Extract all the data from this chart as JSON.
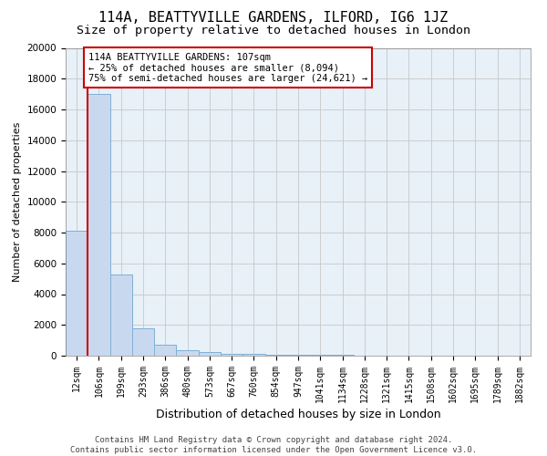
{
  "title": "114A, BEATTYVILLE GARDENS, ILFORD, IG6 1JZ",
  "subtitle": "Size of property relative to detached houses in London",
  "xlabel": "Distribution of detached houses by size in London",
  "ylabel": "Number of detached properties",
  "footer_line1": "Contains HM Land Registry data © Crown copyright and database right 2024.",
  "footer_line2": "Contains public sector information licensed under the Open Government Licence v3.0.",
  "bin_labels": [
    "12sqm",
    "106sqm",
    "199sqm",
    "293sqm",
    "386sqm",
    "480sqm",
    "573sqm",
    "667sqm",
    "760sqm",
    "854sqm",
    "947sqm",
    "1041sqm",
    "1134sqm",
    "1228sqm",
    "1321sqm",
    "1415sqm",
    "1508sqm",
    "1602sqm",
    "1695sqm",
    "1789sqm",
    "1882sqm"
  ],
  "bar_heights": [
    8100,
    17000,
    5300,
    1750,
    700,
    380,
    250,
    130,
    90,
    70,
    50,
    40,
    30,
    25,
    20,
    15,
    12,
    10,
    8,
    7,
    6
  ],
  "bar_color": "#c8d9ef",
  "bar_edgecolor": "#7fafd4",
  "grid_color": "#c8c8c8",
  "background_color": "#e8f0f8",
  "property_line_color": "#cc0000",
  "annotation_text_line1": "114A BEATTYVILLE GARDENS: 107sqm",
  "annotation_text_line2": "← 25% of detached houses are smaller (8,094)",
  "annotation_text_line3": "75% of semi-detached houses are larger (24,621) →",
  "annotation_box_color": "#cc0000",
  "ylim": [
    0,
    20000
  ],
  "yticks": [
    0,
    2000,
    4000,
    6000,
    8000,
    10000,
    12000,
    14000,
    16000,
    18000,
    20000
  ],
  "title_fontsize": 11,
  "subtitle_fontsize": 9.5,
  "xlabel_fontsize": 9,
  "ylabel_fontsize": 8,
  "tick_fontsize": 7,
  "annotation_fontsize": 7.5,
  "footer_fontsize": 6.5
}
